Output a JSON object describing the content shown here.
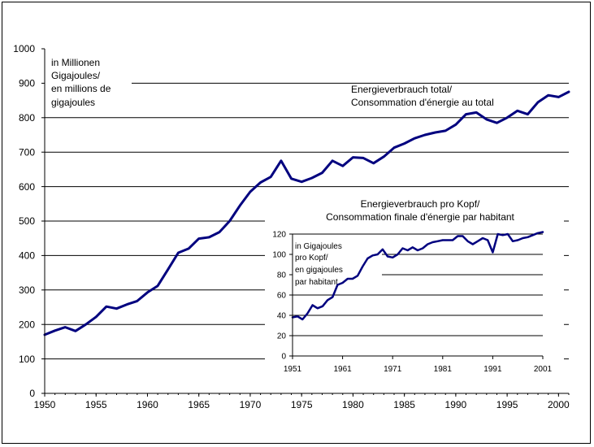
{
  "chart_data": [
    {
      "type": "line",
      "title": "",
      "xlabel": "",
      "ylabel": "",
      "series_label": [
        "Energieverbrauch total/",
        "Consommation d'énergie au total"
      ],
      "unit_label": [
        "in Millionen",
        "Gigajoules/",
        "en millions de",
        "gigajoules"
      ],
      "xlim": [
        1950,
        2001
      ],
      "ylim": [
        0,
        1000
      ],
      "x_ticks": [
        "1950",
        "1955",
        "1960",
        "1965",
        "1970",
        "1975",
        "1980",
        "1985",
        "1990",
        "1995",
        "2000"
      ],
      "y_ticks": [
        "0",
        "100",
        "200",
        "300",
        "400",
        "500",
        "600",
        "700",
        "800",
        "900",
        "1000"
      ],
      "grid": "horizontal",
      "line_color": "#00007f",
      "series": [
        {
          "name": "Energieverbrauch total",
          "x": [
            1950,
            1951,
            1952,
            1953,
            1954,
            1955,
            1956,
            1957,
            1958,
            1959,
            1960,
            1961,
            1962,
            1963,
            1964,
            1965,
            1966,
            1967,
            1968,
            1969,
            1970,
            1971,
            1972,
            1973,
            1974,
            1975,
            1976,
            1977,
            1978,
            1979,
            1980,
            1981,
            1982,
            1983,
            1984,
            1985,
            1986,
            1987,
            1988,
            1989,
            1990,
            1991,
            1992,
            1993,
            1994,
            1995,
            1996,
            1997,
            1998,
            1999,
            2000,
            2001
          ],
          "values": [
            170,
            182,
            192,
            181,
            200,
            222,
            252,
            246,
            258,
            268,
            293,
            312,
            360,
            408,
            420,
            449,
            453,
            468,
            500,
            545,
            585,
            612,
            628,
            675,
            623,
            614,
            625,
            640,
            675,
            660,
            685,
            683,
            668,
            687,
            713,
            725,
            740,
            750,
            757,
            762,
            780,
            810,
            815,
            795,
            785,
            800,
            820,
            810,
            845,
            865,
            860,
            875
          ]
        }
      ]
    },
    {
      "type": "line",
      "title": [
        "Energieverbrauch pro Kopf/",
        "Consommation finale d'énergie par habitant"
      ],
      "xlabel": "",
      "ylabel": "",
      "unit_label": [
        "in Gigajoules",
        "pro Kopf/",
        "en gigajoules",
        "par habitant"
      ],
      "xlim": [
        1951,
        2001
      ],
      "ylim": [
        0,
        120
      ],
      "x_ticks": [
        "1951",
        "1961",
        "1971",
        "1981",
        "1991",
        "2001"
      ],
      "y_ticks": [
        "0",
        "20",
        "40",
        "60",
        "80",
        "100",
        "120"
      ],
      "grid": "horizontal",
      "line_color": "#00007f",
      "series": [
        {
          "name": "Energieverbrauch pro Kopf",
          "x": [
            1951,
            1952,
            1953,
            1954,
            1955,
            1956,
            1957,
            1958,
            1959,
            1960,
            1961,
            1962,
            1963,
            1964,
            1965,
            1966,
            1967,
            1968,
            1969,
            1970,
            1971,
            1972,
            1973,
            1974,
            1975,
            1976,
            1977,
            1978,
            1979,
            1980,
            1981,
            1982,
            1983,
            1984,
            1985,
            1986,
            1987,
            1988,
            1989,
            1990,
            1991,
            1992,
            1993,
            1994,
            1995,
            1996,
            1997,
            1998,
            1999,
            2000,
            2001
          ],
          "values": [
            38,
            39,
            36,
            42,
            50,
            47,
            49,
            55,
            58,
            70,
            72,
            76,
            76,
            79,
            88,
            96,
            99,
            100,
            105,
            98,
            97,
            100,
            106,
            104,
            107,
            104,
            106,
            110,
            112,
            113,
            114,
            114,
            114,
            118,
            118,
            113,
            110,
            113,
            116,
            114,
            102,
            120,
            119,
            120,
            113,
            114,
            116,
            117,
            119,
            121,
            122
          ]
        }
      ]
    }
  ]
}
